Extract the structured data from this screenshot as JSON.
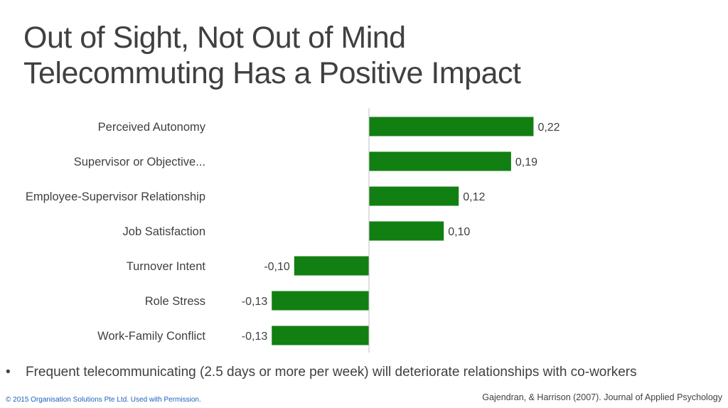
{
  "title_lines": [
    "Out of Sight, Not Out of Mind",
    "Telecommuting Has a Positive Impact"
  ],
  "chart_data": {
    "type": "bar",
    "orientation": "horizontal",
    "categories": [
      "Perceived Autonomy",
      "Supervisor or Objective...",
      "Employee-Supervisor Relationship",
      "Job Satisfaction",
      "Turnover Intent",
      "Role Stress",
      "Work-Family Conflict"
    ],
    "values": [
      0.22,
      0.19,
      0.12,
      0.1,
      -0.1,
      -0.13,
      -0.13
    ],
    "data_labels": [
      "0,22",
      "0,19",
      "0,12",
      "0,10",
      "-0,10",
      "-0,13",
      "-0,13"
    ],
    "bar_color": "#127f12",
    "grid": false
  },
  "bullet": "Frequent telecommunicating (2.5 days or more per week) will deteriorate relationships with co-workers",
  "copyright": "© 2015 Organisation Solutions  Pte Ltd.  Used with Permission.",
  "citation": "Gajendran, & Harrison (2007). Journal of Applied Psychology"
}
